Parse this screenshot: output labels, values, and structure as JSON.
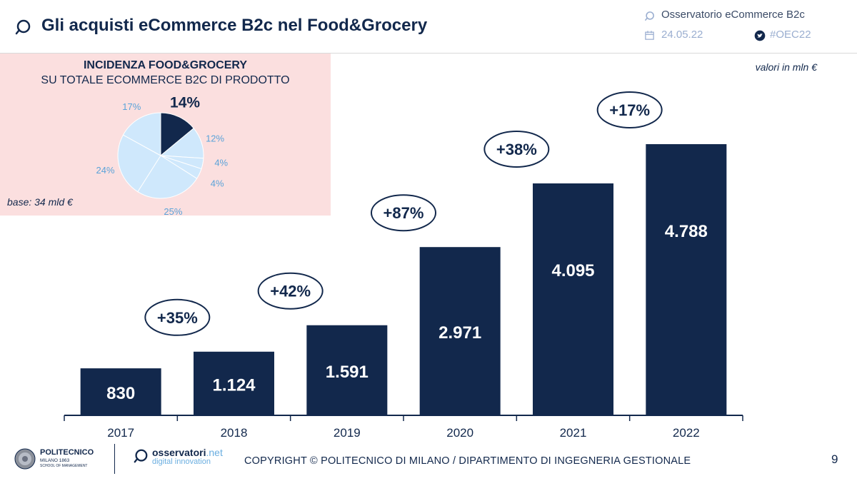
{
  "header": {
    "title": "Gli acquisti eCommerce B2c nel Food&Grocery",
    "observatory": "Osservatorio eCommerce B2c",
    "date": "24.05.22",
    "hashtag": "#OEC22"
  },
  "inset": {
    "title_line1": "INCIDENZA FOOD&GROCERY",
    "title_line2": "SU TOTALE ECOMMERCE B2C DI PRODOTTO",
    "base": "base: 34 mld €"
  },
  "unit_note": "valori in mln €",
  "chart_data": [
    {
      "type": "bar",
      "title": "Gli acquisti eCommerce B2c nel Food&Grocery",
      "ylabel": "valori in mln €",
      "categories": [
        "2017",
        "2018",
        "2019",
        "2020",
        "2021",
        "2022"
      ],
      "values": [
        830,
        1124,
        1591,
        2971,
        4095,
        4788
      ],
      "value_labels": [
        "830",
        "1.124",
        "1.591",
        "2.971",
        "4.095",
        "4.788"
      ],
      "growth_labels": [
        "",
        "+35%",
        "+42%",
        "+87%",
        "+38%",
        "+17%"
      ],
      "ylim": [
        0,
        5000
      ],
      "grid": false
    },
    {
      "type": "pie",
      "title": "INCIDENZA FOOD&GROCERY SU TOTALE ECOMMERCE B2C DI PRODOTTO",
      "values": [
        14,
        12,
        4,
        4,
        25,
        24,
        17
      ],
      "labels": [
        "14%",
        "12%",
        "4%",
        "4%",
        "25%",
        "24%",
        "17%"
      ],
      "highlight_index": 0
    }
  ],
  "colors": {
    "navy": "#12284c",
    "light_blue": "#cfe8fc",
    "label_blue": "#5ba3d9",
    "pink_bg": "#fbdfdf"
  },
  "footer": {
    "copyright": "COPYRIGHT © POLITECNICO DI MILANO / DIPARTIMENTO DI INGEGNERIA GESTIONALE",
    "page_number": "9",
    "poli_name": "POLITECNICO",
    "poli_sub1": "MILANO 1863",
    "poli_sub2": "SCHOOL OF MANAGEMENT",
    "oss_name": "osservatori",
    "oss_net": ".net",
    "oss_sub": "digital innovation",
    "icons": [
      "politecnico-seal-icon",
      "osservatori-logo-icon"
    ]
  }
}
